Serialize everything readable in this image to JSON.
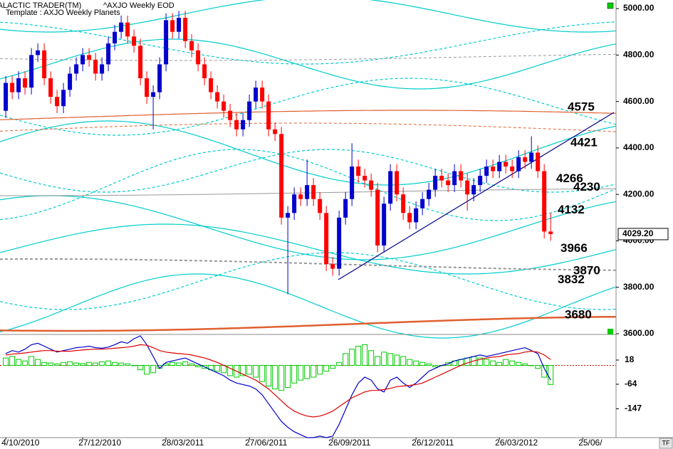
{
  "chart_data": {
    "type": "candlestick",
    "header": "GALACTIC TRADER(TM)",
    "symbol": "^AXJO Weekly EOD",
    "template": "Template : AXJO Weekly Planets",
    "button": "TF",
    "colors": {
      "up": "#0000cc",
      "down": "#ff0000"
    },
    "open": [
      4560,
      4680,
      4640,
      4700,
      4660,
      4800,
      4820,
      4700,
      4620,
      4580,
      4650,
      4720,
      4760,
      4800,
      4780,
      4720,
      4760,
      4850,
      4900,
      4940,
      4880,
      4840,
      4700,
      4620,
      4640,
      4760,
      4950,
      4900,
      4960,
      4860,
      4820,
      4760,
      4700,
      4640,
      4600,
      4560,
      4520,
      4480,
      4520,
      4600,
      4660,
      4600,
      4480,
      4460,
      4100,
      4120,
      4200,
      4180,
      4240,
      4180,
      4120,
      3900,
      3880,
      4100,
      4180,
      4320,
      4280,
      4260,
      4220,
      3980,
      4160,
      4300,
      4200,
      4120,
      4080,
      4140,
      4180,
      4220,
      4280,
      4260,
      4240,
      4300,
      4260,
      4200,
      4240,
      4280,
      4320,
      4300,
      4340,
      4320,
      4300,
      4360,
      4340,
      4380,
      4300,
      4040
    ],
    "high": [
      4710,
      4710,
      4730,
      4730,
      4830,
      4850,
      4850,
      4730,
      4650,
      4680,
      4750,
      4790,
      4830,
      4830,
      4810,
      4790,
      4880,
      4930,
      4970,
      4970,
      4910,
      4870,
      4730,
      4670,
      4790,
      4980,
      4980,
      4990,
      4990,
      4890,
      4850,
      4790,
      4730,
      4670,
      4630,
      4590,
      4550,
      4550,
      4630,
      4690,
      4690,
      4630,
      4510,
      4490,
      4150,
      4230,
      4230,
      4350,
      4270,
      4210,
      4150,
      3930,
      4130,
      4210,
      4420,
      4350,
      4310,
      4290,
      4250,
      4190,
      4330,
      4330,
      4230,
      4150,
      4170,
      4210,
      4250,
      4310,
      4310,
      4290,
      4330,
      4330,
      4290,
      4270,
      4310,
      4350,
      4350,
      4370,
      4370,
      4350,
      4390,
      4390,
      4450,
      4410,
      4330,
      4120
    ],
    "low": [
      4530,
      4610,
      4610,
      4630,
      4630,
      4770,
      4670,
      4590,
      4550,
      4550,
      4620,
      4690,
      4730,
      4750,
      4690,
      4690,
      4730,
      4820,
      4870,
      4850,
      4810,
      4670,
      4590,
      4480,
      4610,
      4730,
      4870,
      4870,
      4830,
      4790,
      4730,
      4670,
      4610,
      4570,
      4530,
      4490,
      4450,
      4450,
      4490,
      4570,
      4570,
      4450,
      4430,
      4070,
      3770,
      4090,
      4150,
      4150,
      4150,
      4090,
      3870,
      3850,
      3850,
      4070,
      4150,
      4250,
      4230,
      4190,
      3950,
      3950,
      4130,
      4170,
      4090,
      4050,
      4050,
      4110,
      4150,
      4190,
      4230,
      4210,
      4210,
      4230,
      4130,
      4170,
      4210,
      4250,
      4270,
      4270,
      4290,
      4270,
      4270,
      4310,
      4310,
      4270,
      4010,
      4000
    ],
    "close": [
      4680,
      4640,
      4700,
      4660,
      4800,
      4820,
      4700,
      4620,
      4580,
      4650,
      4720,
      4760,
      4800,
      4780,
      4720,
      4760,
      4850,
      4900,
      4940,
      4880,
      4840,
      4700,
      4620,
      4640,
      4760,
      4950,
      4900,
      4960,
      4860,
      4820,
      4760,
      4700,
      4640,
      4600,
      4560,
      4520,
      4480,
      4520,
      4600,
      4660,
      4600,
      4480,
      4460,
      4100,
      4120,
      4200,
      4180,
      4240,
      4180,
      4120,
      3900,
      3880,
      4100,
      4180,
      4320,
      4280,
      4260,
      4220,
      3980,
      4160,
      4300,
      4200,
      4120,
      4080,
      4140,
      4180,
      4220,
      4280,
      4260,
      4240,
      4300,
      4260,
      4200,
      4240,
      4280,
      4320,
      4300,
      4340,
      4320,
      4300,
      4360,
      4340,
      4380,
      4300,
      4040,
      4029.2
    ],
    "last_label": "4029.20",
    "ylim": [
      3597,
      5037
    ],
    "yticks": [
      {
        "value": 5000,
        "label": "5000.00"
      },
      {
        "value": 4800,
        "label": "4800.00"
      },
      {
        "value": 4600,
        "label": "4600.00"
      },
      {
        "value": 4400,
        "label": "4400.00"
      },
      {
        "value": 4200,
        "label": "4200.00"
      },
      {
        "value": 4000,
        "label": "4000.00"
      },
      {
        "value": 3800,
        "label": "3800.00"
      },
      {
        "value": 3600,
        "label": "3600.00"
      }
    ],
    "xlim": [
      -0.9,
      95.2
    ],
    "xticks": [
      {
        "value": 0,
        "label": "4/10/2010"
      },
      {
        "value": 12,
        "label": "27/12/2010"
      },
      {
        "value": 25,
        "label": "28/03/2011"
      },
      {
        "value": 38,
        "label": "27/06/2011"
      },
      {
        "value": 51,
        "label": "26/09/2011"
      },
      {
        "value": 64,
        "label": "26/12/2011"
      },
      {
        "value": 77,
        "label": "26/03/2012"
      },
      {
        "value": 90,
        "label": "25/06/"
      }
    ],
    "levels": [
      {
        "value": 4575,
        "color": "#660000"
      },
      {
        "value": 4421,
        "color": "#660000"
      },
      {
        "value": 4266,
        "color": "#000066"
      },
      {
        "value": 4230,
        "color": "#666666"
      },
      {
        "value": 4132,
        "color": "#000066"
      },
      {
        "value": 3966,
        "color": "#000066"
      },
      {
        "value": 3870,
        "color": "#666666"
      },
      {
        "value": 3832,
        "color": "#000066"
      },
      {
        "value": 3680,
        "color": "#660000"
      }
    ],
    "indicator": {
      "ylim": [
        -245,
        100
      ],
      "yticks": [
        18,
        -64,
        -147
      ],
      "histogram": {
        "color": "#00cc00",
        "values": [
          25,
          30,
          20,
          15,
          30,
          20,
          10,
          8,
          5,
          10,
          12,
          8,
          6,
          10,
          8,
          12,
          15,
          10,
          8,
          5,
          0,
          -15,
          -30,
          -25,
          -10,
          5,
          10,
          8,
          12,
          5,
          -5,
          -10,
          -15,
          -20,
          -25,
          -35,
          -40,
          -35,
          -30,
          -40,
          -55,
          -70,
          -80,
          -85,
          -75,
          -60,
          -50,
          -45,
          -40,
          -30,
          -20,
          -10,
          10,
          40,
          55,
          65,
          70,
          50,
          30,
          45,
          40,
          35,
          30,
          20,
          15,
          10,
          5,
          -5,
          0,
          10,
          15,
          20,
          25,
          30,
          25,
          20,
          15,
          10,
          20,
          15,
          10,
          5,
          0,
          -10,
          -40,
          -65
        ]
      },
      "series": [
        {
          "color": "#0000cc",
          "values": [
            40,
            50,
            45,
            55,
            70,
            75,
            65,
            55,
            45,
            50,
            55,
            60,
            62,
            65,
            60,
            58,
            62,
            70,
            80,
            75,
            90,
            100,
            70,
            30,
            -10,
            10,
            15,
            20,
            25,
            15,
            5,
            -5,
            -15,
            -25,
            -35,
            -50,
            -60,
            -65,
            -70,
            -80,
            -100,
            -130,
            -160,
            -190,
            -210,
            -225,
            -235,
            -245,
            -245,
            -240,
            -245,
            -240,
            -200,
            -150,
            -100,
            -60,
            -40,
            -50,
            -80,
            -90,
            -50,
            -40,
            -60,
            -75,
            -60,
            -40,
            -20,
            -10,
            0,
            5,
            15,
            20,
            25,
            30,
            35,
            30,
            35,
            40,
            45,
            50,
            55,
            60,
            50,
            40,
            -10,
            -50
          ]
        },
        {
          "color": "#dd0000",
          "values": [
            35,
            38,
            40,
            42,
            45,
            48,
            50,
            50,
            48,
            48,
            48,
            50,
            52,
            54,
            55,
            55,
            56,
            58,
            60,
            62,
            65,
            70,
            68,
            60,
            50,
            45,
            42,
            40,
            38,
            35,
            30,
            25,
            18,
            10,
            0,
            -10,
            -20,
            -30,
            -40,
            -50,
            -65,
            -80,
            -100,
            -120,
            -140,
            -155,
            -165,
            -172,
            -175,
            -172,
            -165,
            -155,
            -140,
            -125,
            -110,
            -100,
            -90,
            -85,
            -85,
            -82,
            -78,
            -72,
            -70,
            -68,
            -65,
            -60,
            -50,
            -40,
            -30,
            -20,
            -10,
            0,
            8,
            15,
            20,
            25,
            28,
            30,
            35,
            38,
            40,
            45,
            48,
            45,
            35,
            20
          ]
        }
      ]
    }
  }
}
